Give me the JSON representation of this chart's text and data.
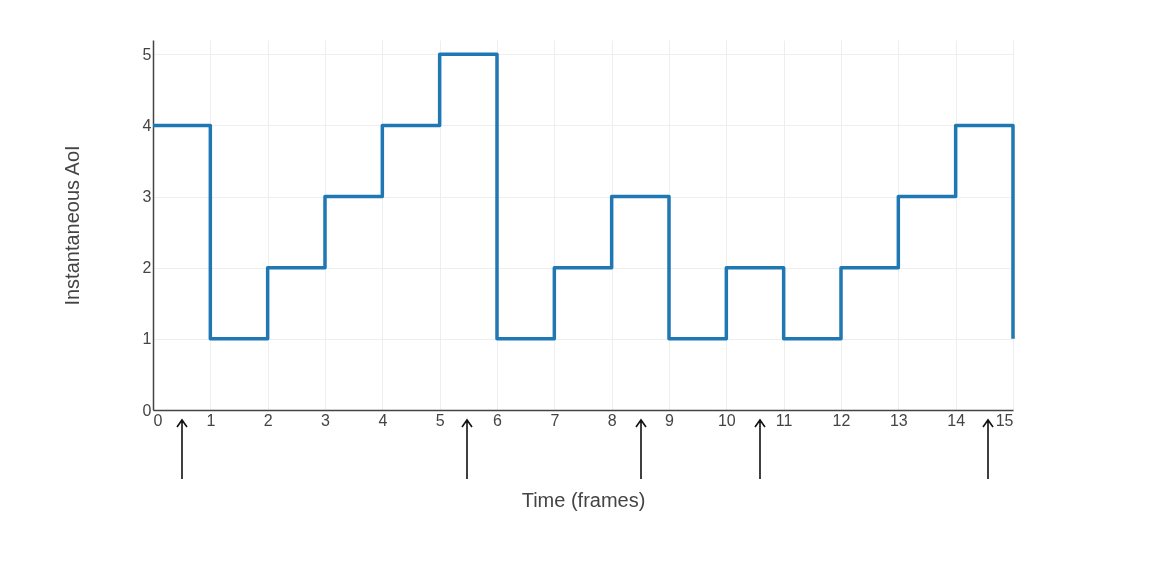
{
  "chart_data": {
    "type": "step",
    "xlabel": "Time (frames)",
    "ylabel": "Instantaneous AoI",
    "x": [
      0,
      1,
      2,
      3,
      4,
      5,
      6,
      7,
      8,
      9,
      10,
      11,
      12,
      13,
      14,
      15
    ],
    "values": [
      4,
      1,
      2,
      3,
      4,
      5,
      1,
      2,
      3,
      1,
      2,
      1,
      2,
      3,
      4,
      1
    ],
    "color": "#1f77b4",
    "xlim": [
      0,
      15
    ],
    "xticks": [
      0,
      1,
      2,
      3,
      4,
      5,
      6,
      7,
      8,
      9,
      10,
      11,
      12,
      13,
      14,
      15
    ],
    "ylim": [
      0,
      5.2
    ],
    "yticks": [
      0,
      1,
      2,
      3,
      4,
      5
    ],
    "grid": true,
    "marker": "none",
    "line_style": "solid"
  }
}
